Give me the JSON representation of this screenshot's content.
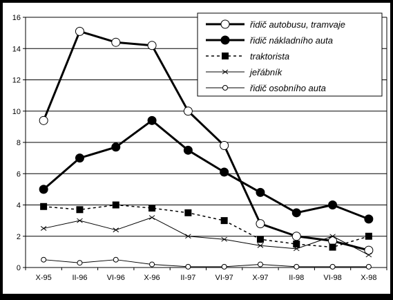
{
  "chart_data": {
    "type": "line",
    "title": "",
    "xlabel": "",
    "ylabel": "",
    "categories": [
      "X-95",
      "II-96",
      "VI-96",
      "X-96",
      "II-97",
      "VI-97",
      "X-97",
      "II-98",
      "VI-98",
      "X-98"
    ],
    "ylim": [
      0,
      16
    ],
    "yticks": [
      "0",
      "2",
      "4",
      "6",
      "8",
      "10",
      "12",
      "14",
      "16"
    ],
    "grid": true,
    "legend_position": "top-right",
    "series": [
      {
        "name": "řidič autobusu, tramvaje",
        "marker": "open-circle",
        "line": "thick-solid",
        "values": [
          9.4,
          15.1,
          14.4,
          14.2,
          10.0,
          7.8,
          2.8,
          2.0,
          1.7,
          1.1
        ]
      },
      {
        "name": "řidič nákladního auta",
        "marker": "filled-circle",
        "line": "thick-solid",
        "values": [
          5.0,
          7.0,
          7.7,
          9.4,
          7.5,
          6.1,
          4.8,
          3.5,
          4.0,
          3.1
        ]
      },
      {
        "name": "traktorista",
        "marker": "filled-square",
        "line": "dashed",
        "values": [
          3.9,
          3.7,
          4.0,
          3.8,
          3.5,
          3.0,
          1.8,
          1.5,
          1.3,
          2.0
        ]
      },
      {
        "name": "jeřábník",
        "marker": "cross",
        "line": "thin-solid",
        "values": [
          2.5,
          3.0,
          2.4,
          3.2,
          2.0,
          1.8,
          1.4,
          1.2,
          2.0,
          0.8
        ]
      },
      {
        "name": "řidič osobního auta",
        "marker": "open-circle-small",
        "line": "thin-solid",
        "values": [
          0.5,
          0.3,
          0.5,
          0.2,
          0.05,
          0.05,
          0.2,
          0.05,
          0.05,
          0.05
        ]
      }
    ],
    "colors": {
      "background": "#000000",
      "plot_area": "#ffffff",
      "lines": "#000000"
    }
  }
}
